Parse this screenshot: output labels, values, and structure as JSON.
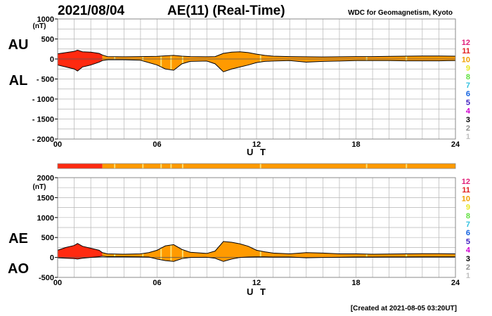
{
  "header": {
    "date": "2021/08/04",
    "title": "AE(11) (Real-Time)",
    "source": "WDC for Geomagnetism, Kyoto"
  },
  "footer": {
    "created": "[Created at 2021-08-05 03:20UT]"
  },
  "colors": {
    "levels": [
      "#c0c0c0",
      "#909090",
      "#000000",
      "#d000d0",
      "#4020c0",
      "#1060e0",
      "#30c0e0",
      "#60e040",
      "#e8e820",
      "#f0a000",
      "#e02020",
      "#e0207a"
    ],
    "active": "#ff9a00",
    "disturbed": "#ff2a10",
    "quiet_marker": "#ffe070",
    "outline": "#000000"
  },
  "chart_data": [
    {
      "name": "AU-AL",
      "type": "area",
      "labels": {
        "upper": "AU",
        "lower": "AL"
      },
      "unit": "(nT)",
      "xlabel": "U T",
      "xlim": [
        0,
        24
      ],
      "ylim": [
        -2000,
        1000
      ],
      "xticks": [
        "00",
        "06",
        "12",
        "18",
        "24"
      ],
      "yticks": [
        "1000",
        "500",
        "0",
        "- 500",
        "- 1000",
        "- 1500",
        "- 2000"
      ],
      "level_legend": [
        "12",
        "11",
        "10",
        "9",
        "8",
        "7",
        "6",
        "5",
        "4",
        "3",
        "2",
        "1"
      ],
      "series": [
        {
          "name": "AU",
          "x": [
            0,
            0.5,
            1,
            1.2,
            1.5,
            2,
            2.5,
            2.7,
            3,
            4,
            5,
            6,
            6.5,
            7,
            7.5,
            8,
            9,
            9.5,
            10,
            10.5,
            11,
            11.5,
            12,
            12.5,
            13,
            14,
            15,
            16,
            17,
            18,
            19,
            20,
            21,
            22,
            23,
            24
          ],
          "values": [
            130,
            160,
            190,
            220,
            180,
            170,
            140,
            100,
            60,
            55,
            60,
            65,
            80,
            90,
            70,
            60,
            55,
            60,
            140,
            170,
            180,
            160,
            120,
            90,
            70,
            60,
            55,
            50,
            55,
            60,
            60,
            65,
            70,
            75,
            75,
            70
          ]
        },
        {
          "name": "AL",
          "x": [
            0,
            0.5,
            1,
            1.2,
            1.5,
            2,
            2.5,
            2.7,
            3,
            4,
            5,
            6,
            6.5,
            7,
            7.5,
            8,
            9,
            9.5,
            10,
            10.5,
            11,
            11.5,
            12,
            12.5,
            13,
            14,
            15,
            16,
            17,
            18,
            19,
            20,
            21,
            22,
            23,
            24
          ],
          "values": [
            -150,
            -200,
            -250,
            -300,
            -200,
            -150,
            -80,
            -40,
            -20,
            -20,
            -30,
            -150,
            -250,
            -280,
            -120,
            -60,
            -50,
            -120,
            -320,
            -250,
            -200,
            -150,
            -90,
            -60,
            -50,
            -40,
            -80,
            -60,
            -50,
            -40,
            -40,
            -40,
            -45,
            -45,
            -45,
            -40
          ]
        }
      ]
    },
    {
      "name": "AE-AO",
      "type": "area",
      "labels": {
        "upper": "AE",
        "lower": "AO"
      },
      "unit": "(nT)",
      "xlabel": "U T",
      "xlim": [
        0,
        24
      ],
      "ylim": [
        -500,
        2000
      ],
      "xticks": [
        "00",
        "06",
        "12",
        "18",
        "24"
      ],
      "yticks": [
        "2000",
        "1500",
        "1000",
        "500",
        "0",
        "-500"
      ],
      "level_legend": [
        "12",
        "11",
        "10",
        "9",
        "8",
        "7",
        "6",
        "5",
        "4",
        "3",
        "2",
        "1"
      ],
      "series": [
        {
          "name": "AE",
          "x": [
            0,
            0.5,
            1,
            1.2,
            1.5,
            2,
            2.5,
            2.7,
            3,
            4,
            5,
            5.5,
            6,
            6.5,
            7,
            7.5,
            8,
            9,
            9.5,
            10,
            10.5,
            11,
            11.5,
            12,
            12.5,
            13,
            14,
            15,
            16,
            17,
            18,
            19,
            20,
            21,
            22,
            23,
            24
          ],
          "values": [
            180,
            250,
            300,
            350,
            280,
            230,
            180,
            120,
            90,
            80,
            90,
            120,
            180,
            290,
            320,
            200,
            130,
            100,
            160,
            400,
            380,
            340,
            280,
            180,
            140,
            110,
            90,
            120,
            110,
            90,
            90,
            80,
            85,
            90,
            95,
            95,
            90
          ]
        },
        {
          "name": "AO",
          "x": [
            0,
            0.5,
            1,
            1.2,
            1.5,
            2,
            2.5,
            2.7,
            3,
            4,
            5,
            5.5,
            6,
            6.5,
            7,
            7.5,
            8,
            9,
            9.5,
            10,
            10.5,
            11,
            11.5,
            12,
            12.5,
            13,
            14,
            15,
            16,
            17,
            18,
            19,
            20,
            21,
            22,
            23,
            24
          ],
          "values": [
            -10,
            -20,
            -30,
            -40,
            -20,
            0,
            20,
            30,
            20,
            20,
            15,
            10,
            -40,
            -80,
            -100,
            -30,
            0,
            5,
            -20,
            -100,
            -40,
            0,
            10,
            15,
            15,
            10,
            10,
            -10,
            0,
            5,
            10,
            10,
            12,
            12,
            15,
            15,
            15
          ]
        }
      ]
    }
  ],
  "status_bar": {
    "segments": [
      {
        "from": 0,
        "to": 2.7,
        "level": "11"
      },
      {
        "from": 2.7,
        "to": 24,
        "level": "10"
      }
    ],
    "quiet_marks": [
      3.4,
      5.1,
      6.2,
      6.8,
      7.5,
      12.2,
      18.6,
      21.0
    ]
  }
}
